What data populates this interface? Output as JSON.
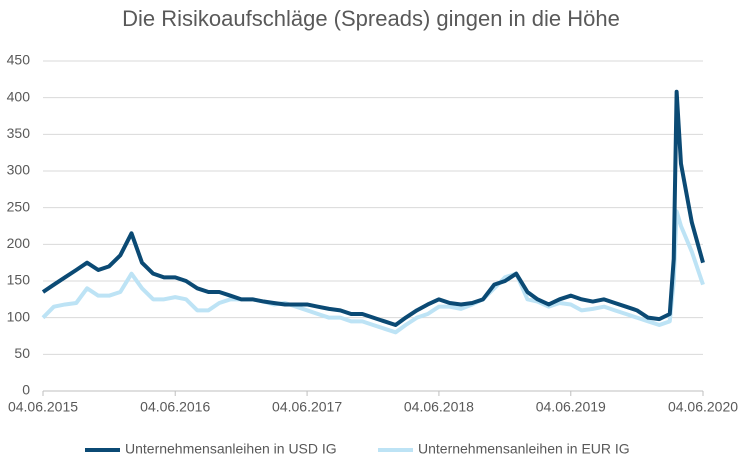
{
  "chart_data": {
    "type": "line",
    "title": "Die Risikoaufschläge (Spreads) gingen in die Höhe",
    "x": [
      "04.06.2015",
      "04.07.2015",
      "04.08.2015",
      "04.09.2015",
      "04.10.2015",
      "04.11.2015",
      "04.12.2015",
      "04.01.2016",
      "04.02.2016",
      "04.03.2016",
      "04.04.2016",
      "04.05.2016",
      "04.06.2016",
      "04.07.2016",
      "04.08.2016",
      "04.09.2016",
      "04.10.2016",
      "04.11.2016",
      "04.12.2016",
      "04.01.2017",
      "04.02.2017",
      "04.03.2017",
      "04.04.2017",
      "04.05.2017",
      "04.06.2017",
      "04.07.2017",
      "04.08.2017",
      "04.09.2017",
      "04.10.2017",
      "04.11.2017",
      "04.12.2017",
      "04.01.2018",
      "04.02.2018",
      "04.03.2018",
      "04.04.2018",
      "04.05.2018",
      "04.06.2018",
      "04.07.2018",
      "04.08.2018",
      "04.09.2018",
      "04.10.2018",
      "04.11.2018",
      "04.12.2018",
      "04.01.2019",
      "04.02.2019",
      "04.03.2019",
      "04.04.2019",
      "04.05.2019",
      "04.06.2019",
      "04.07.2019",
      "04.08.2019",
      "04.09.2019",
      "04.10.2019",
      "04.11.2019",
      "04.12.2019",
      "04.01.2020",
      "04.02.2020",
      "04.03.2020",
      "15.03.2020",
      "23.03.2020",
      "04.04.2020",
      "04.05.2020",
      "04.06.2020"
    ],
    "series": [
      {
        "name": "Unternehmensanleihen in USD IG",
        "color": "#0b4a74",
        "width": 4,
        "values": [
          135,
          145,
          155,
          165,
          175,
          165,
          170,
          185,
          215,
          175,
          160,
          155,
          155,
          150,
          140,
          135,
          135,
          130,
          125,
          125,
          122,
          120,
          118,
          118,
          118,
          115,
          112,
          110,
          105,
          105,
          100,
          95,
          90,
          100,
          110,
          118,
          125,
          120,
          118,
          120,
          125,
          145,
          150,
          160,
          135,
          125,
          118,
          125,
          130,
          125,
          122,
          125,
          120,
          115,
          110,
          100,
          98,
          105,
          180,
          408,
          310,
          230,
          175
        ]
      },
      {
        "name": "Unternehmensanleihen in EUR IG",
        "color": "#bde3f5",
        "width": 4,
        "values": [
          100,
          115,
          118,
          120,
          140,
          130,
          130,
          135,
          160,
          140,
          125,
          125,
          128,
          125,
          110,
          110,
          120,
          125,
          125,
          125,
          122,
          118,
          120,
          115,
          110,
          105,
          100,
          100,
          95,
          95,
          90,
          85,
          80,
          90,
          100,
          105,
          115,
          115,
          112,
          118,
          125,
          140,
          155,
          160,
          125,
          122,
          115,
          120,
          118,
          110,
          112,
          115,
          110,
          105,
          100,
          95,
          90,
          95,
          150,
          245,
          225,
          190,
          145
        ]
      }
    ],
    "xlim": [
      "04.06.2015",
      "04.06.2020"
    ],
    "xticks": [
      "04.06.2015",
      "04.06.2016",
      "04.06.2017",
      "04.06.2018",
      "04.06.2019",
      "04.06.2020"
    ],
    "ylim": [
      0,
      450
    ],
    "yticks": [
      0,
      50,
      100,
      150,
      200,
      250,
      300,
      350,
      400,
      450
    ],
    "grid": true,
    "legend": "bottom"
  }
}
